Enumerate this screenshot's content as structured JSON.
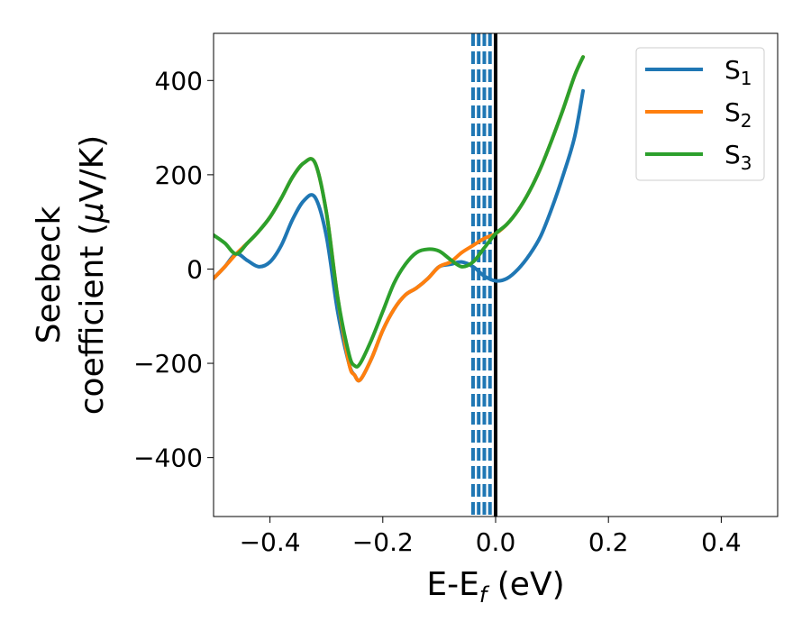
{
  "chart_data": {
    "type": "line",
    "xlabel": "E-E",
    "xlabel_sub": "f",
    "xlabel_unit": " (eV)",
    "ylabel_line1": "Seebeck",
    "ylabel_line2": "coefficient  (",
    "ylabel_mu": "μ",
    "ylabel_unit": "V/K)",
    "xlim": [
      -0.5,
      0.5
    ],
    "ylim": [
      -525,
      500
    ],
    "xticks": [
      -0.4,
      -0.2,
      0.0,
      0.2,
      0.4
    ],
    "xtick_labels": [
      "−0.4",
      "−0.2",
      "0.0",
      "0.2",
      "0.4"
    ],
    "yticks": [
      400,
      200,
      0,
      -200,
      -400
    ],
    "ytick_labels": [
      "400",
      "200",
      "0",
      "−200",
      "−400"
    ],
    "grid": false,
    "legend_position": "top-right",
    "vlines": [
      {
        "x": 0.0,
        "style": "solid",
        "color": "#000000"
      },
      {
        "x": -0.04,
        "style": "dashed",
        "color": "#1f77b4"
      },
      {
        "x": -0.03,
        "style": "dashed",
        "color": "#1f77b4"
      },
      {
        "x": -0.02,
        "style": "dashed",
        "color": "#1f77b4"
      },
      {
        "x": -0.01,
        "style": "dashed",
        "color": "#1f77b4"
      }
    ],
    "series": [
      {
        "name": "S",
        "name_sub": "1",
        "color": "#1f77b4",
        "x": [
          -0.5,
          -0.48,
          -0.46,
          -0.44,
          -0.42,
          -0.4,
          -0.38,
          -0.36,
          -0.34,
          -0.32,
          -0.3,
          -0.28,
          -0.26,
          -0.25,
          -0.24,
          -0.22,
          -0.2,
          -0.18,
          -0.16,
          -0.14,
          -0.12,
          -0.1,
          -0.08,
          -0.06,
          -0.04,
          -0.02,
          0.0,
          0.02,
          0.04,
          0.06,
          0.08,
          0.1,
          0.12,
          0.14,
          0.155
        ],
        "y": [
          -20,
          5,
          32,
          18,
          5,
          15,
          50,
          105,
          145,
          152,
          70,
          -90,
          -200,
          -225,
          -235,
          -190,
          -130,
          -85,
          -55,
          -40,
          -20,
          5,
          10,
          15,
          5,
          -15,
          -25,
          -20,
          0,
          30,
          70,
          130,
          200,
          280,
          378
        ]
      },
      {
        "name": "S",
        "name_sub": "2",
        "color": "#ff7f0e",
        "x": [
          -0.5,
          -0.48,
          -0.46,
          -0.44,
          -0.42,
          -0.4,
          -0.38,
          -0.36,
          -0.34,
          -0.32,
          -0.3,
          -0.28,
          -0.26,
          -0.25,
          -0.24,
          -0.22,
          -0.2,
          -0.18,
          -0.16,
          -0.14,
          -0.12,
          -0.1,
          -0.08,
          -0.06,
          -0.04,
          -0.02,
          0.0,
          0.02,
          0.04,
          0.06,
          0.08,
          0.1,
          0.12,
          0.14,
          0.155
        ],
        "y": [
          -20,
          5,
          32,
          55,
          80,
          110,
          150,
          195,
          225,
          225,
          120,
          -60,
          -200,
          -225,
          -235,
          -190,
          -130,
          -85,
          -55,
          -40,
          -20,
          5,
          15,
          35,
          50,
          65,
          75,
          95,
          125,
          165,
          215,
          275,
          340,
          410,
          450
        ]
      },
      {
        "name": "S",
        "name_sub": "3",
        "color": "#2ca02c",
        "x": [
          -0.5,
          -0.48,
          -0.46,
          -0.44,
          -0.42,
          -0.4,
          -0.38,
          -0.36,
          -0.34,
          -0.32,
          -0.3,
          -0.28,
          -0.26,
          -0.25,
          -0.24,
          -0.22,
          -0.2,
          -0.18,
          -0.16,
          -0.14,
          -0.12,
          -0.1,
          -0.08,
          -0.06,
          -0.04,
          -0.02,
          0.0,
          0.02,
          0.04,
          0.06,
          0.08,
          0.1,
          0.12,
          0.14,
          0.155
        ],
        "y": [
          72,
          55,
          32,
          55,
          80,
          110,
          150,
          195,
          225,
          225,
          120,
          -60,
          -180,
          -205,
          -200,
          -150,
          -90,
          -30,
          10,
          35,
          42,
          38,
          20,
          5,
          15,
          45,
          75,
          95,
          125,
          165,
          215,
          275,
          340,
          410,
          450
        ]
      }
    ]
  }
}
